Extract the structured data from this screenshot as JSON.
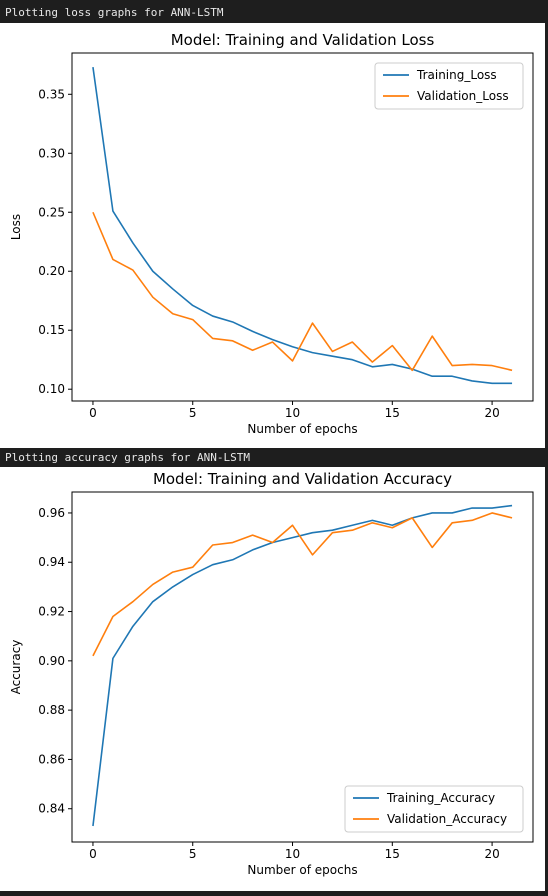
{
  "cells": [
    {
      "label": "Plotting loss graphs for ANN-LSTM"
    },
    {
      "label": "Plotting accuracy graphs for ANN-LSTM"
    }
  ],
  "chart_data": [
    {
      "type": "line",
      "title": "Model: Training and Validation Loss",
      "xlabel": "Number of epochs",
      "ylabel": "Loss",
      "x": [
        0,
        1,
        2,
        3,
        4,
        5,
        6,
        7,
        8,
        9,
        10,
        11,
        12,
        13,
        14,
        15,
        16,
        17,
        18,
        19,
        20,
        21
      ],
      "xlim": [
        -1.05,
        22.05
      ],
      "ylim": [
        0.09,
        0.385
      ],
      "xticks": [
        0,
        5,
        10,
        15,
        20
      ],
      "yticks": [
        0.1,
        0.15,
        0.2,
        0.25,
        0.3,
        0.35
      ],
      "ytick_labels": [
        "0.10",
        "0.15",
        "0.20",
        "0.25",
        "0.30",
        "0.35"
      ],
      "legend": "upper right",
      "grid": false,
      "series": [
        {
          "name": "Training_Loss",
          "color": "#1f77b4",
          "values": [
            0.373,
            0.251,
            0.224,
            0.2,
            0.185,
            0.171,
            0.162,
            0.157,
            0.149,
            0.142,
            0.136,
            0.131,
            0.128,
            0.125,
            0.119,
            0.121,
            0.117,
            0.111,
            0.111,
            0.107,
            0.105,
            0.105
          ]
        },
        {
          "name": "Validation_Loss",
          "color": "#ff7f0e",
          "values": [
            0.25,
            0.21,
            0.201,
            0.178,
            0.164,
            0.159,
            0.143,
            0.141,
            0.133,
            0.14,
            0.124,
            0.156,
            0.132,
            0.14,
            0.123,
            0.137,
            0.116,
            0.145,
            0.12,
            0.121,
            0.12,
            0.116
          ]
        }
      ]
    },
    {
      "type": "line",
      "title": "Model: Training and Validation Accuracy",
      "xlabel": "Number of epochs",
      "ylabel": "Accuracy",
      "x": [
        0,
        1,
        2,
        3,
        4,
        5,
        6,
        7,
        8,
        9,
        10,
        11,
        12,
        13,
        14,
        15,
        16,
        17,
        18,
        19,
        20,
        21
      ],
      "xlim": [
        -1.05,
        22.05
      ],
      "ylim": [
        0.8265,
        0.9685
      ],
      "xticks": [
        0,
        5,
        10,
        15,
        20
      ],
      "yticks": [
        0.84,
        0.86,
        0.88,
        0.9,
        0.92,
        0.94,
        0.96
      ],
      "ytick_labels": [
        "0.84",
        "0.86",
        "0.88",
        "0.90",
        "0.92",
        "0.94",
        "0.96"
      ],
      "legend": "lower right",
      "grid": false,
      "series": [
        {
          "name": "Training_Accuracy",
          "color": "#1f77b4",
          "values": [
            0.833,
            0.901,
            0.914,
            0.924,
            0.93,
            0.935,
            0.939,
            0.941,
            0.945,
            0.948,
            0.95,
            0.952,
            0.953,
            0.955,
            0.957,
            0.955,
            0.958,
            0.96,
            0.96,
            0.962,
            0.962,
            0.963
          ]
        },
        {
          "name": "Validation_Accuracy",
          "color": "#ff7f0e",
          "values": [
            0.902,
            0.918,
            0.924,
            0.931,
            0.936,
            0.938,
            0.947,
            0.948,
            0.951,
            0.948,
            0.955,
            0.943,
            0.952,
            0.953,
            0.956,
            0.954,
            0.958,
            0.946,
            0.956,
            0.957,
            0.96,
            0.958
          ]
        }
      ]
    }
  ]
}
